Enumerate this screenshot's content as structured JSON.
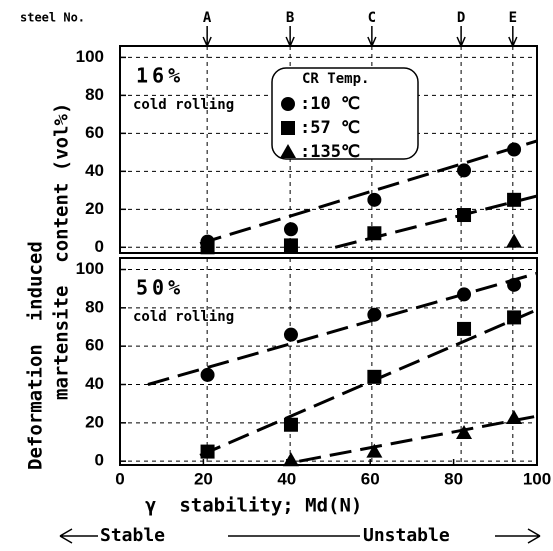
{
  "chart_data": [
    {
      "type": "scatter",
      "panel_label": "16%",
      "panel_note": "cold rolling",
      "ylabel": [
        "Deformation  induced",
        "martensite  content (vol%)"
      ],
      "steel_label": "steel No.",
      "steels": {
        "labels": [
          "A",
          "B",
          "C",
          "D",
          "E"
        ],
        "x": [
          20.9,
          40.8,
          60.4,
          81.8,
          94.2
        ]
      },
      "legend_title": "CR Temp.",
      "xlim": [
        0,
        100
      ],
      "ylim": [
        -3,
        106
      ],
      "yticks": [
        0,
        20,
        40,
        60,
        80,
        100
      ],
      "grid": true,
      "series": [
        {
          "name": ":10 ℃",
          "marker": "circle",
          "color": "#000000",
          "x": [
            21,
            41,
            61,
            82.5,
            94.5
          ],
          "values": [
            3,
            9.5,
            25,
            40.5,
            51.5
          ]
        },
        {
          "name": ":57 ℃",
          "marker": "square",
          "color": "#000000",
          "x": [
            21,
            41,
            61,
            82.5,
            94.5
          ],
          "values": [
            0,
            1,
            7.4,
            17,
            25
          ]
        },
        {
          "name": ":135℃",
          "marker": "triangle",
          "color": "#000000",
          "x": [
            94.5
          ],
          "values": [
            3
          ]
        }
      ],
      "fit_lines": [
        {
          "x": [
            19.2,
            100
          ],
          "values": [
            2,
            56
          ]
        },
        {
          "x": [
            51.6,
            100
          ],
          "values": [
            0,
            27
          ]
        }
      ]
    },
    {
      "type": "scatter",
      "panel_label": "50%",
      "panel_note": "cold rolling",
      "xlabel": "γ  stability; Md(N)",
      "stability_scale": [
        "Stable",
        "Unstable"
      ],
      "xlim": [
        0,
        100
      ],
      "xticks": [
        0,
        20,
        40,
        60,
        80,
        100
      ],
      "ylim": [
        -2,
        106
      ],
      "yticks": [
        0,
        20,
        40,
        60,
        80,
        100
      ],
      "grid": true,
      "series": [
        {
          "marker": "circle",
          "color": "#000000",
          "x": [
            21,
            41,
            61,
            82.5,
            94.5
          ],
          "values": [
            45,
            66,
            76.4,
            87,
            92
          ]
        },
        {
          "marker": "square",
          "color": "#000000",
          "x": [
            21,
            41,
            61,
            82.5,
            94.5
          ],
          "values": [
            5,
            19,
            44,
            69,
            75
          ]
        },
        {
          "marker": "triangle",
          "color": "#000000",
          "x": [
            41,
            61,
            82.5,
            94.5
          ],
          "values": [
            0.5,
            5,
            14.7,
            22.5
          ]
        }
      ],
      "fit_lines": [
        {
          "x": [
            6.7,
            100
          ],
          "values": [
            40,
            98
          ]
        },
        {
          "x": [
            19.2,
            100
          ],
          "values": [
            3,
            79
          ]
        },
        {
          "x": [
            43,
            100
          ],
          "values": [
            0,
            23.5
          ]
        }
      ]
    }
  ]
}
